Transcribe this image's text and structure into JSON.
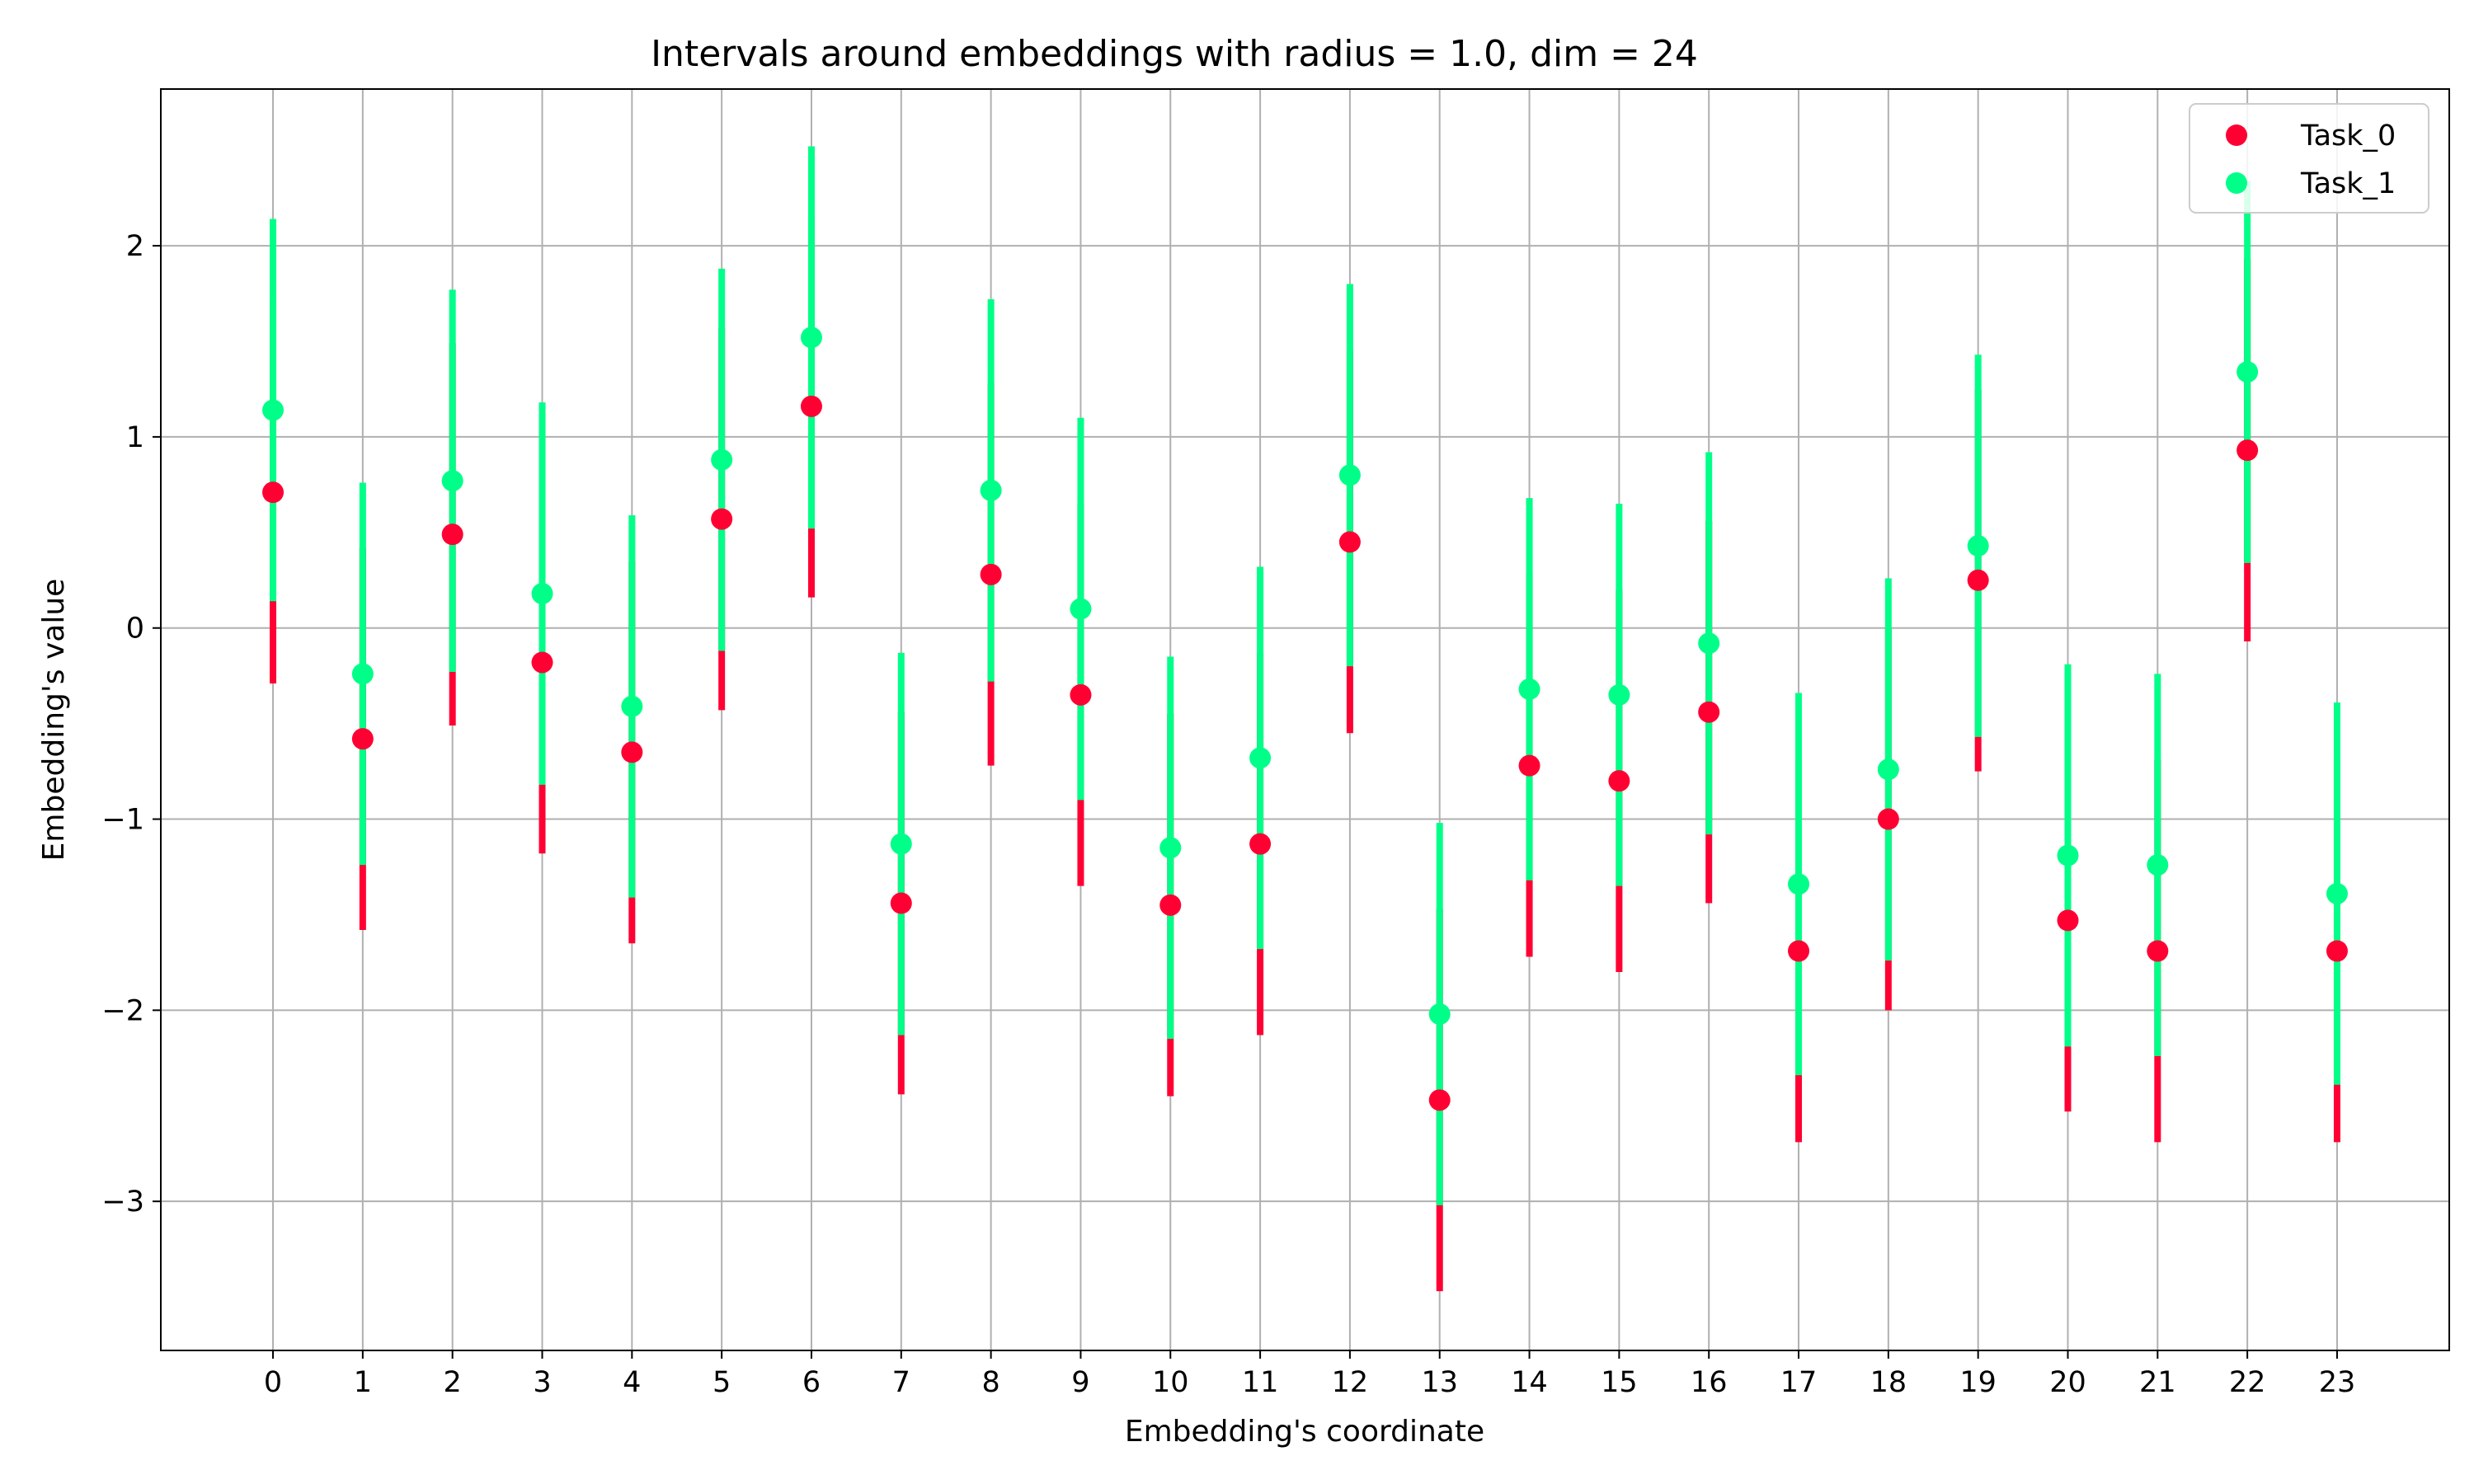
{
  "chart_data": {
    "type": "scatter",
    "title": "Intervals around embeddings with radius = 1.0, dim = 24",
    "xlabel": "Embedding's coordinate",
    "ylabel": "Embedding's value",
    "x": [
      0,
      1,
      2,
      3,
      4,
      5,
      6,
      7,
      8,
      9,
      10,
      11,
      12,
      13,
      14,
      15,
      16,
      17,
      18,
      19,
      20,
      21,
      22,
      23
    ],
    "xlim": [
      -1.25,
      24.25
    ],
    "ylim": [
      -3.78,
      2.82
    ],
    "yticks": [
      -3,
      -2,
      -1,
      0,
      1,
      2
    ],
    "ytick_labels": [
      "−3",
      "−2",
      "−1",
      "0",
      "1",
      "2"
    ],
    "radius": 1.0,
    "grid": true,
    "legend_position": "top-right",
    "series": [
      {
        "name": "Task_0",
        "color": "#ff0033",
        "values": [
          0.71,
          -0.58,
          0.49,
          -0.18,
          -0.65,
          0.57,
          1.16,
          -1.44,
          0.28,
          -0.35,
          -1.45,
          -1.13,
          0.45,
          -2.47,
          -0.72,
          -0.8,
          -0.44,
          -1.69,
          -1.0,
          0.25,
          -1.53,
          -1.69,
          0.93,
          -1.69
        ]
      },
      {
        "name": "Task_1",
        "color": "#00ff88",
        "values": [
          1.14,
          -0.24,
          0.77,
          0.18,
          -0.41,
          0.88,
          1.52,
          -1.13,
          0.72,
          0.1,
          -1.15,
          -0.68,
          0.8,
          -2.02,
          -0.32,
          -0.35,
          -0.08,
          -1.34,
          -0.74,
          0.43,
          -1.19,
          -1.24,
          1.34,
          -1.39
        ]
      }
    ]
  }
}
